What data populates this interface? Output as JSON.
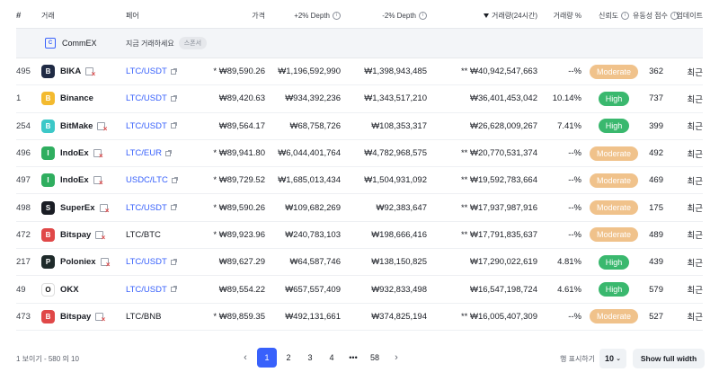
{
  "headers": {
    "rank": "#",
    "exchange": "거래",
    "pair": "페어",
    "price": "가격",
    "plus_depth": "+2% Depth",
    "minus_depth": "-2% Depth",
    "volume": "거래량(24시간)",
    "volume_pct": "거래량 %",
    "trust": "신뢰도",
    "liquidity": "유동성 점수",
    "updated": "업데이트"
  },
  "sponsor": {
    "name": "CommEX",
    "logo_icon": "commex-logo-icon",
    "cta": "지금 거래하세요",
    "tag": "스폰서"
  },
  "rows": [
    {
      "rank": "495",
      "exchange": "BIKA",
      "logo_color": "#1f2a44",
      "logo_icon": "bika-logo-icon",
      "warn": true,
      "pair": "LTC/USDT",
      "pair_link": true,
      "price": "* ₩89,590.26",
      "plus_depth": "₩1,196,592,990",
      "minus_depth": "₩1,398,943,485",
      "volume": "** ₩40,942,547,663",
      "volume_pct": "--%",
      "trust": "Moderate",
      "liquidity": "362",
      "updated": "최근"
    },
    {
      "rank": "1",
      "exchange": "Binance",
      "logo_color": "#f3ba2f",
      "logo_icon": "binance-logo-icon",
      "warn": false,
      "pair": "LTC/USDT",
      "pair_link": true,
      "price": "₩89,420.63",
      "plus_depth": "₩934,392,236",
      "minus_depth": "₩1,343,517,210",
      "volume": "₩36,401,453,042",
      "volume_pct": "10.14%",
      "trust": "High",
      "liquidity": "737",
      "updated": "최근"
    },
    {
      "rank": "254",
      "exchange": "BitMake",
      "logo_color": "#3cc8c8",
      "logo_icon": "bitmake-logo-icon",
      "warn": true,
      "pair": "LTC/USDT",
      "pair_link": true,
      "price": "₩89,564.17",
      "plus_depth": "₩68,758,726",
      "minus_depth": "₩108,353,317",
      "volume": "₩26,628,009,267",
      "volume_pct": "7.41%",
      "trust": "High",
      "liquidity": "399",
      "updated": "최근"
    },
    {
      "rank": "496",
      "exchange": "IndoEx",
      "logo_color": "#2fae5f",
      "logo_icon": "indoex-logo-icon",
      "warn": true,
      "pair": "LTC/EUR",
      "pair_link": true,
      "price": "* ₩89,941.80",
      "plus_depth": "₩6,044,401,764",
      "minus_depth": "₩4,782,968,575",
      "volume": "** ₩20,770,531,374",
      "volume_pct": "--%",
      "trust": "Moderate",
      "liquidity": "492",
      "updated": "최근"
    },
    {
      "rank": "497",
      "exchange": "IndoEx",
      "logo_color": "#2fae5f",
      "logo_icon": "indoex-logo-icon",
      "warn": true,
      "pair": "USDC/LTC",
      "pair_link": true,
      "price": "* ₩89,729.52",
      "plus_depth": "₩1,685,013,434",
      "minus_depth": "₩1,504,931,092",
      "volume": "** ₩19,592,783,664",
      "volume_pct": "--%",
      "trust": "Moderate",
      "liquidity": "469",
      "updated": "최근"
    },
    {
      "rank": "498",
      "exchange": "SuperEx",
      "logo_color": "#1a1d24",
      "logo_icon": "superex-logo-icon",
      "warn": true,
      "pair": "LTC/USDT",
      "pair_link": true,
      "price": "* ₩89,590.26",
      "plus_depth": "₩109,682,269",
      "minus_depth": "₩92,383,647",
      "volume": "** ₩17,937,987,916",
      "volume_pct": "--%",
      "trust": "Moderate",
      "liquidity": "175",
      "updated": "최근"
    },
    {
      "rank": "472",
      "exchange": "Bitspay",
      "logo_color": "#e04848",
      "logo_icon": "bitspay-logo-icon",
      "warn": true,
      "pair": "LTC/BTC",
      "pair_link": false,
      "price": "* ₩89,923.96",
      "plus_depth": "₩240,783,103",
      "minus_depth": "₩198,666,416",
      "volume": "** ₩17,791,835,637",
      "volume_pct": "--%",
      "trust": "Moderate",
      "liquidity": "489",
      "updated": "최근"
    },
    {
      "rank": "217",
      "exchange": "Poloniex",
      "logo_color": "#1e2a2a",
      "logo_icon": "poloniex-logo-icon",
      "warn": true,
      "pair": "LTC/USDT",
      "pair_link": true,
      "price": "₩89,627.29",
      "plus_depth": "₩64,587,746",
      "minus_depth": "₩138,150,825",
      "volume": "₩17,290,022,619",
      "volume_pct": "4.81%",
      "trust": "High",
      "liquidity": "439",
      "updated": "최근"
    },
    {
      "rank": "49",
      "exchange": "OKX",
      "logo_color": "#ffffff",
      "logo_icon": "okx-logo-icon",
      "warn": false,
      "pair": "LTC/USDT",
      "pair_link": true,
      "price": "₩89,554.22",
      "plus_depth": "₩657,557,409",
      "minus_depth": "₩932,833,498",
      "volume": "₩16,547,198,724",
      "volume_pct": "4.61%",
      "trust": "High",
      "liquidity": "579",
      "updated": "최근"
    },
    {
      "rank": "473",
      "exchange": "Bitspay",
      "logo_color": "#e04848",
      "logo_icon": "bitspay-logo-icon",
      "warn": true,
      "pair": "LTC/BNB",
      "pair_link": false,
      "price": "* ₩89,859.35",
      "plus_depth": "₩492,131,661",
      "minus_depth": "₩374,825,194",
      "volume": "** ₩16,005,407,309",
      "volume_pct": "--%",
      "trust": "Moderate",
      "liquidity": "527",
      "updated": "최근"
    }
  ],
  "footer": {
    "info": "1 보이기 - 580 의 10",
    "pages": [
      "1",
      "2",
      "3",
      "4",
      "•••",
      "58"
    ],
    "active_page": "1",
    "rows_label": "행 표시하기",
    "rows_value": "10",
    "full_width_label": "Show full width"
  },
  "colors": {
    "link": "#3861fb",
    "moderate": "#f0c28b",
    "high": "#3ab86e",
    "warn": "#e04848"
  }
}
